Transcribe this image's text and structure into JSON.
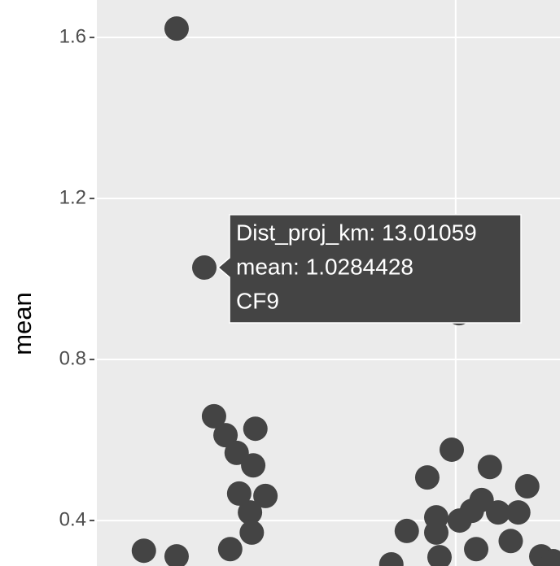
{
  "chart_data": {
    "type": "scatter",
    "y_label": "mean",
    "color": "#444444",
    "x": [
      12.24,
      13.01059,
      13.28,
      13.6,
      13.91,
      14.43,
      14.37,
      13.98,
      14.71,
      14.28,
      14.33,
      13.73,
      11.33,
      12.24,
      19.21,
      19.89,
      20.95,
      21.99,
      20.72,
      20.45,
      21.18,
      21.74,
      19.46,
      20.11,
      18.64,
      19.46,
      21.53,
      20.57,
      19.55,
      18.21,
      22.38,
      20.09,
      22.71
    ],
    "values": [
      1.622,
      1.0284428,
      0.659,
      0.612,
      0.568,
      0.628,
      0.537,
      0.467,
      0.461,
      0.42,
      0.37,
      0.329,
      0.325,
      0.311,
      0.507,
      0.576,
      0.533,
      0.485,
      0.451,
      0.424,
      0.42,
      0.42,
      0.408,
      0.4,
      0.374,
      0.37,
      0.349,
      0.329,
      0.309,
      0.291,
      0.311,
      0.915,
      0.299
    ],
    "xlim": [
      10,
      22.9
    ],
    "ylim": [
      0.287,
      1.693
    ],
    "yticks": [
      0.4,
      0.8,
      1.2,
      1.6
    ],
    "xgrid": [
      10,
      20
    ],
    "grid": true,
    "tooltip": {
      "point": 1,
      "lines": [
        "Dist_proj_km: 13.01059",
        "mean: 1.0284428",
        "CF9"
      ]
    }
  }
}
